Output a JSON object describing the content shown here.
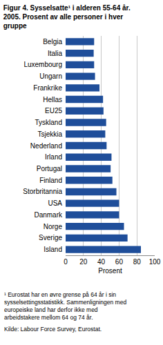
{
  "chart_data": {
    "type": "bar",
    "orientation": "horizontal",
    "title": "Figur 4. Sysselsatte¹ i alderen 55-64 år.\n2005. Prosent av alle personer i hver\ngruppe",
    "x_label": "Prosent",
    "categories": [
      "Belgia",
      "Italia",
      "Luxembourg",
      "Ungarn",
      "Frankrike",
      "Hellas",
      "EU25",
      "Tyskland",
      "Tsjekkia",
      "Nederland",
      "Irland",
      "Portugal",
      "Finland",
      "Storbritannia",
      "USA",
      "Danmark",
      "Norge",
      "Sverige",
      "Island"
    ],
    "values": [
      32,
      31.5,
      32,
      33,
      38,
      42,
      42.5,
      45.5,
      44.5,
      46,
      51.5,
      50.5,
      52.5,
      57,
      60,
      60,
      65.5,
      69.5,
      84.5
    ],
    "color": "#1f4e9a",
    "xlim": [
      0,
      100
    ],
    "xticks": [
      0,
      20,
      40,
      60,
      80,
      100
    ],
    "grid": true,
    "annotations": [
      "¹ Eurostat har en øvre grense på 64 år i sin\nsysselsettingsstatistikk. Sammenligningen med\neuropeiske land har derfor ikke med\narbeidstakere mellom 64 og 74 år.",
      "Kilde: Labour Force Survey, Eurostat."
    ]
  }
}
